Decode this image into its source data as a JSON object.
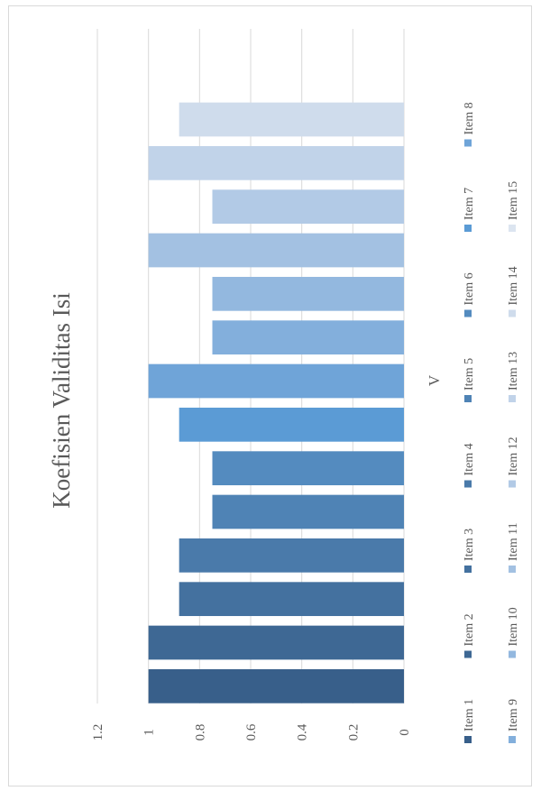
{
  "chart_data": {
    "type": "bar",
    "orientation": "horizontal-rotated",
    "title": "Koefisien Validitas Isi",
    "xlabel": "V",
    "ylabel": "",
    "ylim": [
      0,
      1.2
    ],
    "yticks": [
      "0",
      "0.2",
      "0.4",
      "0.6",
      "0.8",
      "1",
      "1.2"
    ],
    "grid": true,
    "legend_position": "bottom",
    "series": [
      {
        "name": "Item 1",
        "value": 1,
        "color": "#385f8a"
      },
      {
        "name": "Item 2",
        "value": 1,
        "color": "#3e6894"
      },
      {
        "name": "Item 3",
        "value": 0.88,
        "color": "#44719f"
      },
      {
        "name": "Item 4",
        "value": 0.88,
        "color": "#4a7aaa"
      },
      {
        "name": "Item 5",
        "value": 0.75,
        "color": "#4f83b5"
      },
      {
        "name": "Item 6",
        "value": 0.75,
        "color": "#548bbf"
      },
      {
        "name": "Item 7",
        "value": 0.88,
        "color": "#5b9bd5"
      },
      {
        "name": "Item 8",
        "value": 1,
        "color": "#6fa4d8"
      },
      {
        "name": "Item 9",
        "value": 0.75,
        "color": "#83afdc"
      },
      {
        "name": "Item 10",
        "value": 0.75,
        "color": "#93b8df"
      },
      {
        "name": "Item 11",
        "value": 1,
        "color": "#a3c1e2"
      },
      {
        "name": "Item 12",
        "value": 0.75,
        "color": "#b2cae6"
      },
      {
        "name": "Item 13",
        "value": 1,
        "color": "#c1d3e9"
      },
      {
        "name": "Item 14",
        "value": 0.88,
        "color": "#cfdcec"
      },
      {
        "name": "Item 15",
        "value": 0,
        "color": "#dce5f0"
      }
    ]
  }
}
